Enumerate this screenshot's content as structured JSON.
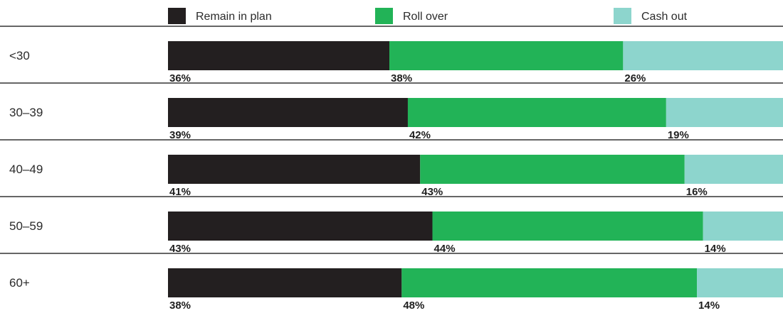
{
  "chart_data": {
    "type": "bar",
    "orientation": "horizontal",
    "stacked": true,
    "normalized_percent": true,
    "title": "",
    "xlabel": "",
    "ylabel": "",
    "xlim": [
      0,
      100
    ],
    "grid": false,
    "legend_position": "top",
    "categories": [
      "<30",
      "30–39",
      "40–49",
      "50–59",
      "60+"
    ],
    "series": [
      {
        "name": "Remain in plan",
        "color": "#231f20",
        "values": [
          36,
          39,
          41,
          43,
          38
        ]
      },
      {
        "name": "Roll over",
        "color": "#22b357",
        "values": [
          38,
          42,
          43,
          44,
          48
        ]
      },
      {
        "name": "Cash out",
        "color": "#8dd5cd",
        "values": [
          26,
          19,
          16,
          14,
          14
        ]
      }
    ],
    "value_format": "{v}%",
    "divider_color": "#333333"
  }
}
